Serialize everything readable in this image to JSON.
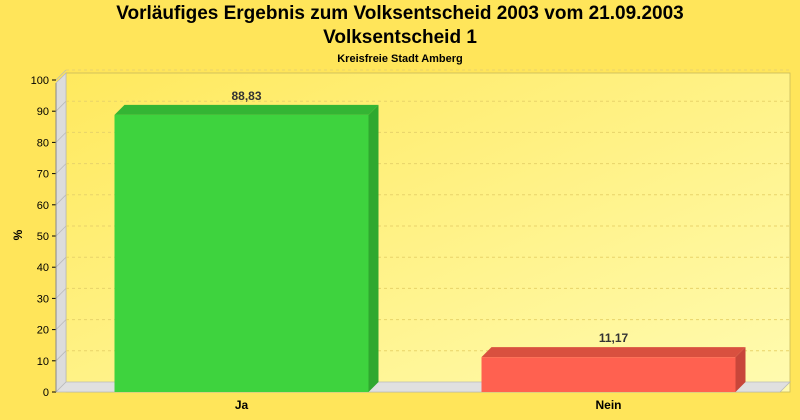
{
  "chart_data": {
    "type": "bar",
    "title": "Vorläufiges Ergebnis zum Volksentscheid 2003 vom 21.09.2003",
    "subtitle_main": "Volksentscheid 1",
    "subtitle": "Kreisfreie Stadt Amberg",
    "ylabel": "%",
    "xlabel": "",
    "ylim": [
      0,
      100
    ],
    "yticks": [
      0,
      10,
      20,
      30,
      40,
      50,
      60,
      70,
      80,
      90,
      100
    ],
    "grid": true,
    "categories": [
      "Ja",
      "Nein"
    ],
    "values": [
      88.83,
      11.17
    ],
    "value_labels": [
      "88,83",
      "11,17"
    ],
    "colors": [
      "#3ed33e",
      "#ff6150"
    ],
    "side_colors": [
      "#2fa82f",
      "#c8463a"
    ],
    "top_colors": [
      "#34b534",
      "#d9503f"
    ]
  }
}
